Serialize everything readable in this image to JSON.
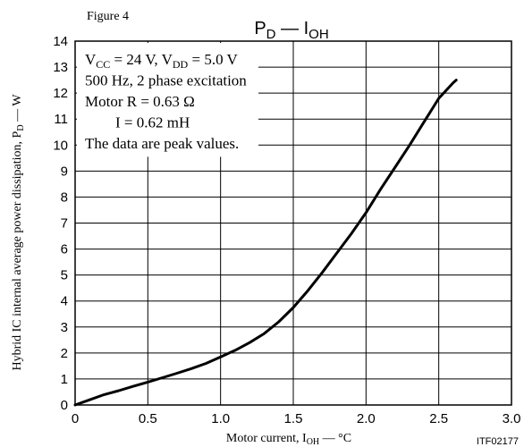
{
  "figure_label": "Figure 4",
  "footer_code": "ITF02177",
  "chart_data": {
    "type": "line",
    "title": {
      "main": "P",
      "main_sub": "D",
      "sep": " — I",
      "sep_sub": "OH"
    },
    "xlabel": {
      "pre": "Motor current, I",
      "sub": "OH",
      "post": " — °C"
    },
    "ylabel": {
      "pre": "Hybrid IC internal average power dissipation, P",
      "sub": "D",
      "post": " — W"
    },
    "xlim": [
      0,
      3.0
    ],
    "ylim": [
      0,
      14
    ],
    "x_ticks": [
      "0",
      "0.5",
      "1.0",
      "1.5",
      "2.0",
      "2.5",
      "3.0"
    ],
    "y_ticks": [
      "0",
      "1",
      "2",
      "3",
      "4",
      "5",
      "6",
      "7",
      "8",
      "9",
      "10",
      "11",
      "12",
      "13",
      "14"
    ],
    "grid": true,
    "annotations": [
      [
        {
          "t": "V"
        },
        {
          "t": "CC",
          "sub": true
        },
        {
          "t": " = 24 V, V"
        },
        {
          "t": "DD",
          "sub": true
        },
        {
          "t": " = 5.0 V"
        }
      ],
      [
        {
          "t": "500 Hz, 2 phase excitation"
        }
      ],
      [
        {
          "t": "Motor R = 0.63 Ω"
        }
      ],
      [
        {
          "t": "        I = 0.62 mH"
        }
      ],
      [
        {
          "t": "The data are peak values."
        }
      ]
    ],
    "series": [
      {
        "x": [
          0,
          0.1,
          0.2,
          0.3,
          0.4,
          0.5,
          0.6,
          0.7,
          0.8,
          0.9,
          1.0,
          1.1,
          1.2,
          1.3,
          1.4,
          1.5,
          1.6,
          1.7,
          1.8,
          1.9,
          2.0,
          2.1,
          2.2,
          2.3,
          2.4,
          2.5,
          2.6,
          2.62
        ],
        "y": [
          0,
          0.2,
          0.4,
          0.55,
          0.72,
          0.88,
          1.05,
          1.22,
          1.4,
          1.6,
          1.85,
          2.1,
          2.4,
          2.75,
          3.2,
          3.75,
          4.4,
          5.1,
          5.85,
          6.6,
          7.4,
          8.3,
          9.15,
          10.0,
          10.9,
          11.8,
          12.4,
          12.5
        ]
      }
    ]
  }
}
